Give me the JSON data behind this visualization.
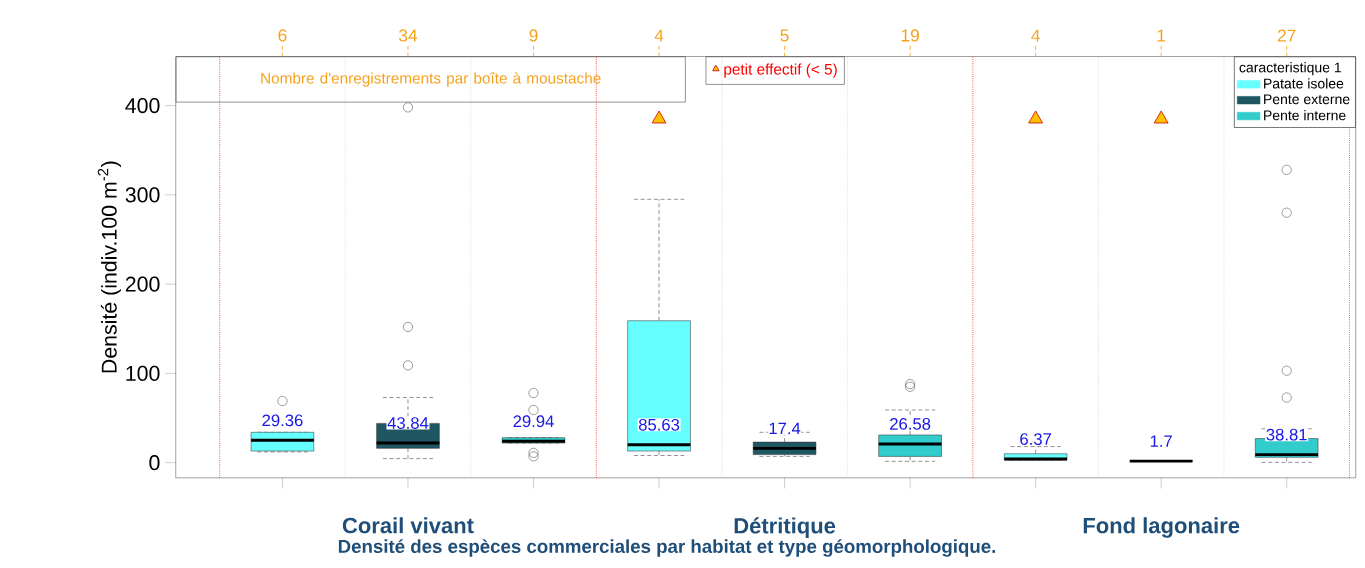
{
  "chart_data": {
    "type": "box",
    "title": "Densité des espèces commerciales par habitat et type géomorphologique.",
    "ylabel": "Densité (indiv.100 m$^{-2}$)",
    "legend_title": "caracteristique 1",
    "legend": "top right",
    "categories": [
      null,
      "Corail vivant",
      null,
      null,
      "Détritique",
      null,
      null,
      "Fond lagonaire",
      null
    ],
    "ylim": [
      -17,
      455
    ],
    "yticks": [
      0,
      100,
      200,
      300,
      400
    ],
    "annotations": [
      "Nombre d'enregistrements par boîte à moustache",
      "6",
      "34",
      "9",
      "4",
      "5",
      "19",
      "4",
      "1",
      "27"
    ],
    "series": [
      {
        "name": "Patate isolee",
        "color": "#66ffff",
        "value_labels": [
          "29.36",
          null,
          null,
          "85.63",
          null,
          null,
          "6.37",
          null,
          null
        ],
        "boxes": [
          {
            "low": 12,
            "q1": 13,
            "median": 25,
            "q3": 34,
            "high": 34,
            "outliers": [
              69
            ]
          },
          null,
          null,
          {
            "low": 8,
            "q1": 13,
            "median": 20,
            "q3": 159,
            "high": 295
          },
          null,
          null,
          {
            "low": 3,
            "q1": 3,
            "median": 4,
            "q3": 10,
            "high": 18
          },
          null,
          null
        ]
      },
      {
        "name": "Pente externe",
        "color": "#1e5662",
        "value_labels": [
          null,
          "43.84",
          null,
          null,
          "17.4",
          null,
          null,
          "1.7",
          null
        ],
        "boxes": [
          null,
          {
            "low": 4.5,
            "q1": 16,
            "median": 22,
            "q3": 44,
            "high": 73,
            "outliers": [
              109,
              152,
              398
            ]
          },
          null,
          null,
          {
            "low": 7,
            "q1": 9,
            "median": 16,
            "q3": 23,
            "high": 34
          },
          null,
          null,
          {
            "low": 1.7,
            "q1": 1.7,
            "median": 1.7,
            "q3": 1.7,
            "high": 1.7
          },
          null
        ]
      },
      {
        "name": "Pente interne",
        "color": "#33cccc",
        "value_labels": [
          null,
          null,
          "29.94",
          null,
          null,
          "26.58",
          null,
          null,
          "38.81"
        ],
        "boxes": [
          null,
          null,
          {
            "low": 22,
            "q1": 22,
            "median": 24,
            "q3": 28,
            "high": 28,
            "outliers": [
              78,
              59,
              11,
              7
            ]
          },
          null,
          null,
          {
            "low": 1.5,
            "q1": 7,
            "median": 21,
            "q3": 31,
            "high": 59,
            "outliers": [
              85,
              88
            ]
          },
          null,
          null,
          {
            "low": 0.3,
            "q1": 6,
            "median": 9,
            "q3": 27,
            "high": 38,
            "outliers": [
              73,
              103,
              280,
              328
            ]
          }
        ]
      },
      {
        "name": "petit effectif (< 5)",
        "type": "scatter",
        "marker": "triangle",
        "color": "#ffc000",
        "values": [
          null,
          null,
          null,
          385,
          null,
          null,
          385,
          385,
          null
        ]
      }
    ]
  }
}
